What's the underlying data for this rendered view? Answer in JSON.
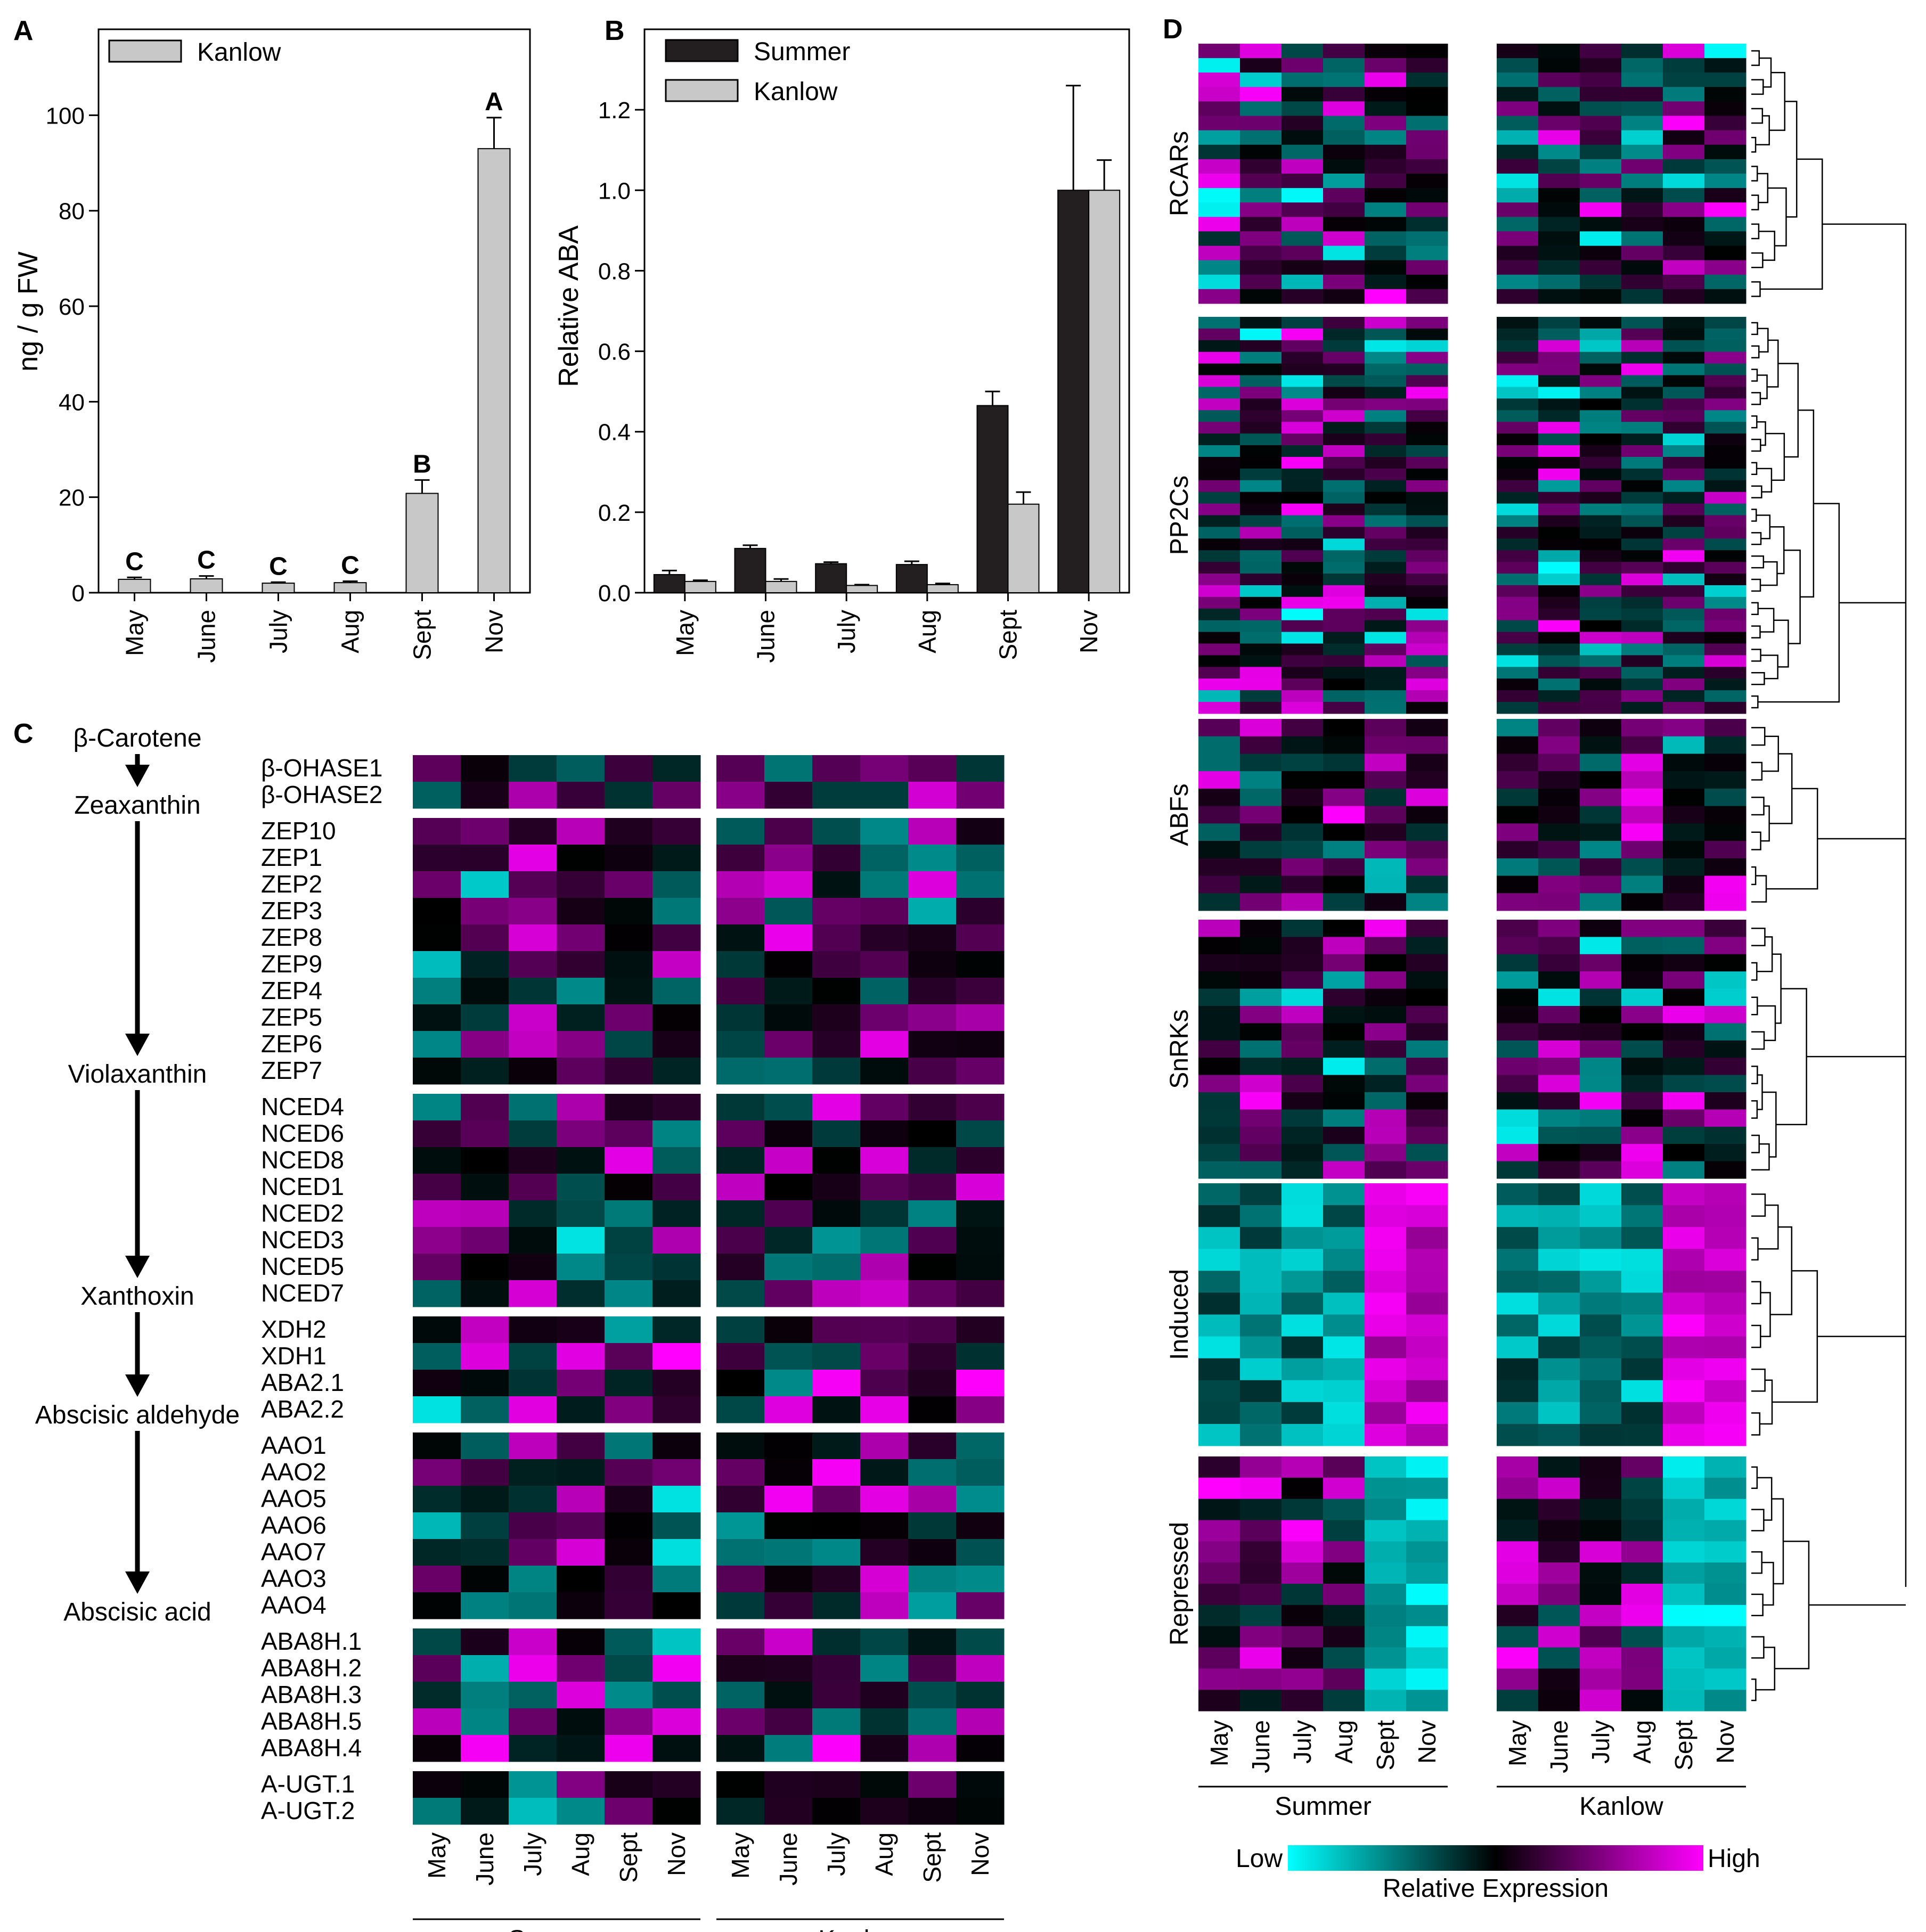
{
  "colors": {
    "low": "#00ffff",
    "mid": "#000000",
    "high": "#ff00ff",
    "bar_dark": "#231f20",
    "bar_light": "#c8c8c8"
  },
  "chart_data": [
    {
      "panel": "A",
      "type": "bar",
      "months": [
        "May",
        "June",
        "July",
        "Aug",
        "Sept",
        "Nov"
      ],
      "series": [
        {
          "name": "Kanlow",
          "values": [
            2.8,
            2.9,
            2.0,
            2.1,
            20.8,
            93
          ],
          "errors": [
            0.4,
            0.6,
            0.2,
            0.3,
            2.8,
            6.5
          ]
        }
      ],
      "letters": [
        "C",
        "C",
        "C",
        "C",
        "B",
        "A"
      ],
      "ylabel": "ng / g FW",
      "yticks": [
        "0",
        "20",
        "40",
        "60",
        "80",
        "100"
      ],
      "ylim": [
        0,
        118
      ]
    },
    {
      "panel": "B",
      "type": "bar",
      "months": [
        "May",
        "June",
        "July",
        "Aug",
        "Sept",
        "Nov"
      ],
      "series": [
        {
          "name": "Summer",
          "values": [
            0.045,
            0.11,
            0.072,
            0.07,
            0.465,
            1.0
          ],
          "errors": [
            0.01,
            0.008,
            0.004,
            0.008,
            0.035,
            0.26
          ]
        },
        {
          "name": "Kanlow",
          "values": [
            0.028,
            0.028,
            0.018,
            0.02,
            0.22,
            1.0
          ],
          "errors": [
            0.003,
            0.006,
            0.002,
            0.003,
            0.03,
            0.075
          ]
        }
      ],
      "ylabel": "Relative ABA",
      "yticks": [
        "0.0",
        "0.2",
        "0.4",
        "0.6",
        "0.8",
        "1.0",
        "1.2"
      ],
      "ylim": [
        0,
        1.4
      ]
    },
    {
      "panel": "C",
      "type": "heatmap",
      "pathway": [
        "β-Carotene",
        "Zeaxanthin",
        "Violaxanthin",
        "Xanthoxin",
        "Abscisic aldehyde",
        "Abscisic acid"
      ],
      "groups": [
        {
          "genes": [
            "β-OHASE1",
            "β-OHASE2"
          ]
        },
        {
          "genes": [
            "ZEP10",
            "ZEP1",
            "ZEP2",
            "ZEP3",
            "ZEP8",
            "ZEP9",
            "ZEP4",
            "ZEP5",
            "ZEP6",
            "ZEP7"
          ]
        },
        {
          "genes": [
            "NCED4",
            "NCED6",
            "NCED8",
            "NCED1",
            "NCED2",
            "NCED3",
            "NCED5",
            "NCED7"
          ]
        },
        {
          "genes": [
            "XDH2",
            "XDH1",
            "ABA2.1",
            "ABA2.2"
          ]
        },
        {
          "genes": [
            "AAO1",
            "AAO2",
            "AAO5",
            "AAO6",
            "AAO7",
            "AAO3",
            "AAO4"
          ]
        },
        {
          "genes": [
            "ABA8H.1",
            "ABA8H.2",
            "ABA8H.3",
            "ABA8H.5",
            "ABA8H.4"
          ]
        },
        {
          "genes": [
            "A-UGT.1",
            "A-UGT.2"
          ]
        }
      ],
      "months": [
        "May",
        "June",
        "July",
        "Aug",
        "Sept",
        "Nov"
      ],
      "genotypes": [
        "Summer",
        "Kanlow"
      ]
    },
    {
      "panel": "D",
      "type": "heatmap",
      "groups": [
        {
          "label": "RCARs",
          "rows": 18
        },
        {
          "label": "PP2Cs",
          "rows": 34
        },
        {
          "label": "ABFs",
          "rows": 11
        },
        {
          "label": "SnRKs",
          "rows": 15
        },
        {
          "label": "Induced",
          "rows": 12
        },
        {
          "label": "Repressed",
          "rows": 12
        }
      ],
      "months": [
        "May",
        "June",
        "July",
        "Aug",
        "Sept",
        "Nov"
      ],
      "genotypes": [
        "Summer",
        "Kanlow"
      ],
      "legend": {
        "low": "Low",
        "high": "High",
        "title": "Relative Expression"
      }
    }
  ]
}
